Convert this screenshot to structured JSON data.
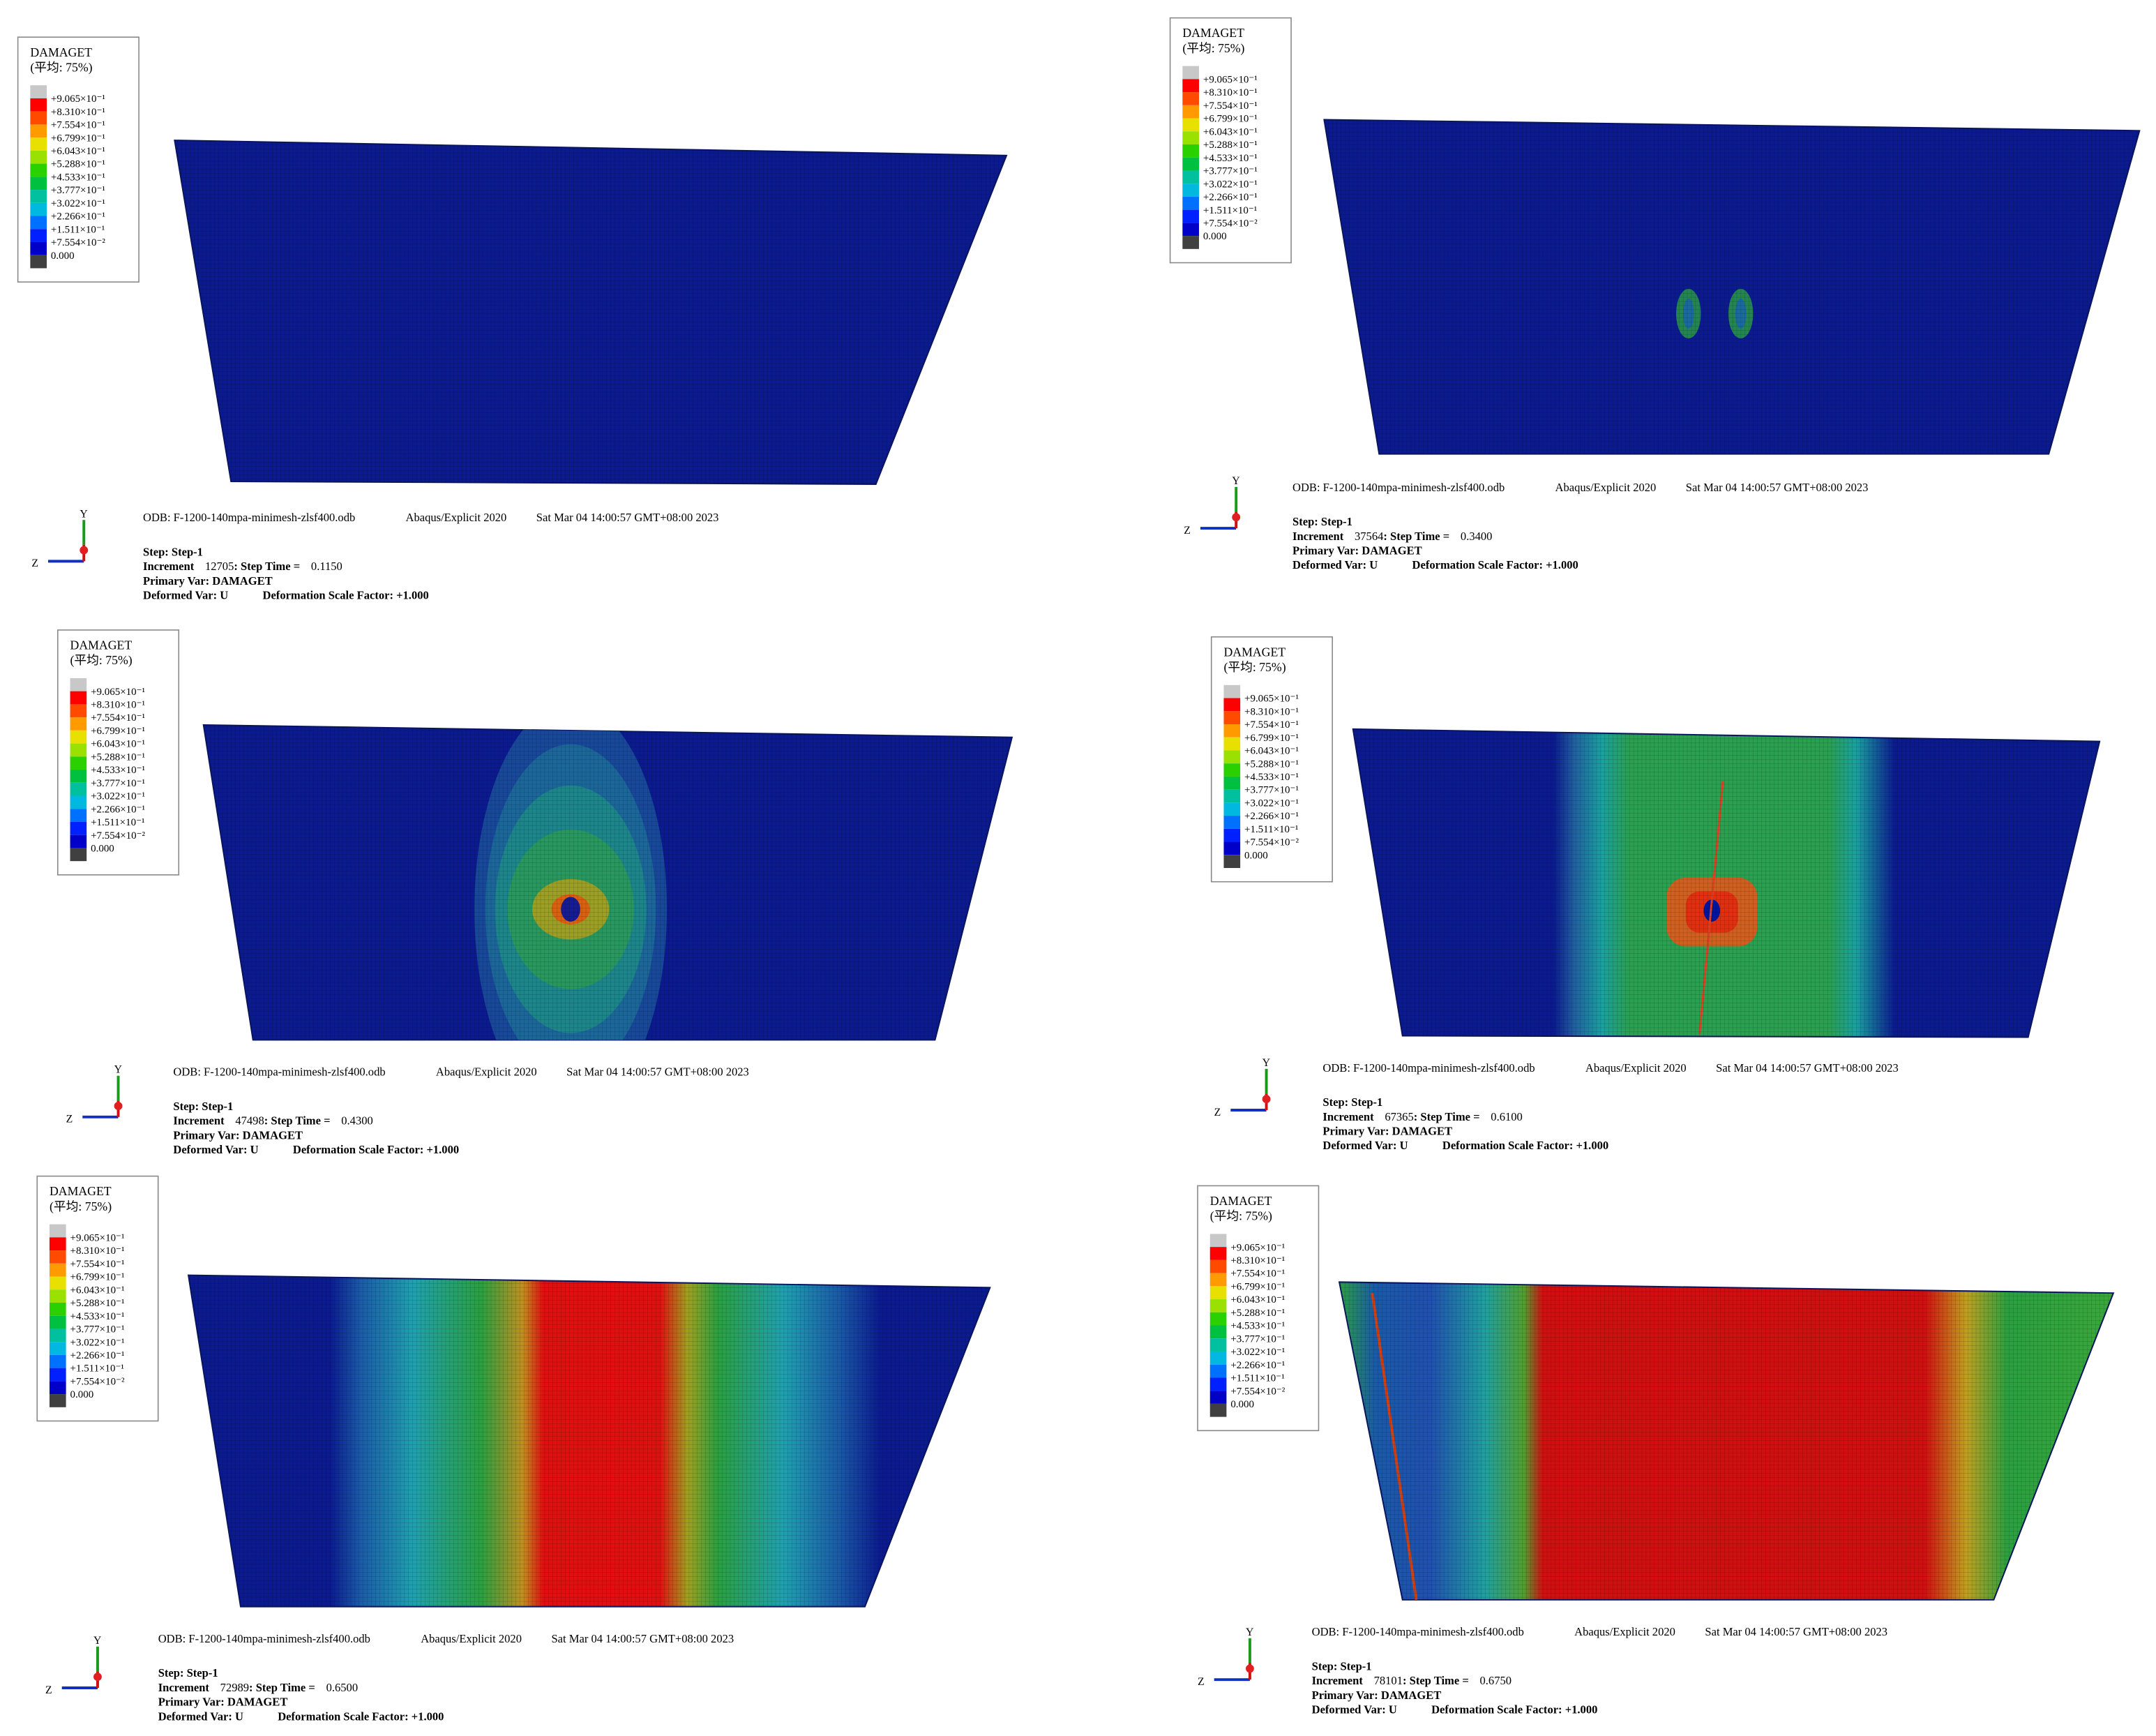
{
  "legend": {
    "title": "DAMAGET",
    "subtitle": "(平均: 75%)",
    "labels": [
      "+9.065×10⁻¹",
      "+8.310×10⁻¹",
      "+7.554×10⁻¹",
      "+6.799×10⁻¹",
      "+6.043×10⁻¹",
      "+5.288×10⁻¹",
      "+4.533×10⁻¹",
      "+3.777×10⁻¹",
      "+3.022×10⁻¹",
      "+2.266×10⁻¹",
      "+1.511×10⁻¹",
      "+7.554×10⁻²",
      "0.000"
    ]
  },
  "triad": {
    "y": "Y",
    "z": "Z"
  },
  "header": {
    "odb": "ODB: F-1200-140mpa-minimesh-zlsf400.odb",
    "solver": "Abaqus/Explicit 2020",
    "date": "Sat Mar 04 14:00:57 GMT+08:00 2023"
  },
  "info": {
    "step": "Step: Step-1",
    "increment_label": "Increment",
    "step_time_label": ": Step Time =",
    "primary_var": "Primary Var: DAMAGET",
    "deformed_var": "Deformed Var: U",
    "scale_factor": "Deformation Scale Factor: +1.000"
  },
  "panels": [
    {
      "increment": 12705,
      "step_time": "0.1150"
    },
    {
      "increment": 37564,
      "step_time": "0.3400"
    },
    {
      "increment": 47498,
      "step_time": "0.4300"
    },
    {
      "increment": 67365,
      "step_time": "0.6100"
    },
    {
      "increment": 72989,
      "step_time": "0.6500"
    },
    {
      "increment": 78101,
      "step_time": "0.6750"
    }
  ]
}
